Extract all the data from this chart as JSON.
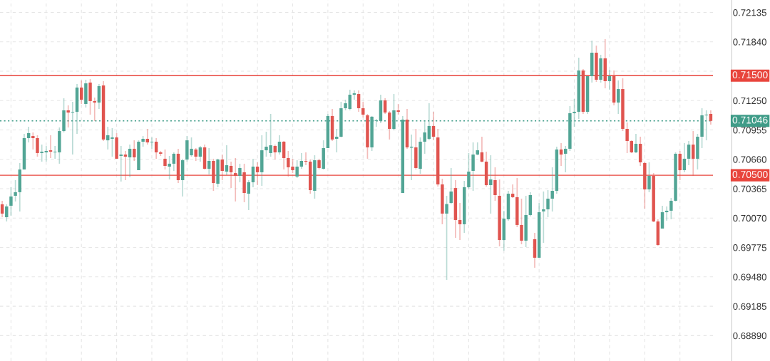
{
  "chart_data": {
    "type": "candlestick",
    "categories": [
      null,
      null,
      null,
      null,
      null,
      null,
      null,
      null,
      null,
      null,
      null,
      null,
      null,
      null,
      null,
      null,
      null,
      null,
      null,
      null,
      null,
      null,
      null,
      null,
      null,
      null,
      null,
      null,
      null,
      null,
      null,
      null,
      null,
      null,
      null,
      null,
      null,
      null,
      null,
      null,
      null,
      null,
      null,
      null,
      null,
      null,
      null,
      null,
      null,
      null,
      null,
      null,
      null,
      null,
      null,
      null,
      null,
      null,
      null,
      null,
      null,
      null,
      null,
      null,
      null,
      null,
      null,
      null,
      null,
      null,
      null,
      null,
      null,
      null,
      null,
      null,
      null,
      null,
      null,
      null,
      null,
      null,
      null,
      null,
      null,
      null,
      null,
      null,
      null,
      null,
      null,
      null,
      null,
      null,
      null,
      null,
      null,
      null,
      null,
      null,
      null,
      null,
      null,
      null,
      null,
      null,
      null,
      null,
      null,
      null,
      null,
      null,
      null,
      null,
      null,
      null,
      null,
      null,
      null,
      null,
      null,
      null,
      null,
      null,
      null,
      null,
      null,
      null,
      null,
      null,
      null,
      null,
      null,
      null,
      null,
      null,
      null,
      null,
      null,
      null,
      null,
      null,
      null,
      null,
      null,
      null,
      null,
      null,
      null,
      null,
      null,
      null,
      null,
      null,
      null,
      null,
      null,
      null,
      null,
      null,
      null,
      null
    ],
    "ohlc": [
      [
        0.70208,
        0.70244,
        0.70079,
        0.70115
      ],
      [
        0.70079,
        0.70208,
        0.70036,
        0.70187
      ],
      [
        0.70194,
        0.7038,
        0.70094,
        0.70287
      ],
      [
        0.70294,
        0.70451,
        0.70237,
        0.7033
      ],
      [
        0.7033,
        0.70623,
        0.70136,
        0.70558
      ],
      [
        0.70558,
        0.70916,
        0.70558,
        0.70873
      ],
      [
        0.70873,
        0.70987,
        0.7083,
        0.70923
      ],
      [
        0.70894,
        0.7093,
        0.70759,
        0.70873
      ],
      [
        0.70873,
        0.70902,
        0.70687,
        0.70723
      ],
      [
        0.70723,
        0.70808,
        0.70637,
        0.70737
      ],
      [
        0.7073,
        0.70794,
        0.70637,
        0.70744
      ],
      [
        0.70751,
        0.70902,
        0.70673,
        0.70737
      ],
      [
        0.7073,
        0.70794,
        0.70666,
        0.70737
      ],
      [
        0.7073,
        0.7098,
        0.70616,
        0.70944
      ],
      [
        0.70944,
        0.71273,
        0.7093,
        0.71152
      ],
      [
        0.71152,
        0.71202,
        0.7098,
        0.7113
      ],
      [
        0.7113,
        0.71238,
        0.70708,
        0.71137
      ],
      [
        0.71137,
        0.71416,
        0.70916,
        0.71381
      ],
      [
        0.71381,
        0.71452,
        0.71216,
        0.71259
      ],
      [
        0.71216,
        0.71459,
        0.7118,
        0.71423
      ],
      [
        0.71431,
        0.71466,
        0.71109,
        0.71245
      ],
      [
        0.71245,
        0.7128,
        0.71045,
        0.7123
      ],
      [
        0.7123,
        0.71416,
        0.71166,
        0.71395
      ],
      [
        0.71402,
        0.71445,
        0.70844,
        0.70859
      ],
      [
        0.70851,
        0.70987,
        0.70759,
        0.70902
      ],
      [
        0.70866,
        0.70973,
        0.70687,
        0.7088
      ],
      [
        0.7088,
        0.70923,
        0.70666,
        0.70666
      ],
      [
        0.70694,
        0.70794,
        0.70437,
        0.70708
      ],
      [
        0.70708,
        0.70744,
        0.70451,
        0.70687
      ],
      [
        0.7068,
        0.70808,
        0.7048,
        0.70766
      ],
      [
        0.70766,
        0.70851,
        0.70644,
        0.7068
      ],
      [
        0.70551,
        0.70851,
        0.70551,
        0.70837
      ],
      [
        0.70837,
        0.70894,
        0.70787,
        0.70866
      ],
      [
        0.70866,
        0.70966,
        0.70808,
        0.7083
      ],
      [
        0.7083,
        0.7088,
        0.70766,
        0.70837
      ],
      [
        0.70837,
        0.70873,
        0.70666,
        0.7073
      ],
      [
        0.7073,
        0.70744,
        0.70694,
        0.70716
      ],
      [
        0.70666,
        0.70759,
        0.70558,
        0.70594
      ],
      [
        0.70587,
        0.70694,
        0.70458,
        0.70616
      ],
      [
        0.70616,
        0.7073,
        0.70544,
        0.70716
      ],
      [
        0.70716,
        0.70766,
        0.70422,
        0.70451
      ],
      [
        0.70451,
        0.70666,
        0.70287,
        0.70651
      ],
      [
        0.70658,
        0.70894,
        0.70637,
        0.70851
      ],
      [
        0.70701,
        0.7088,
        0.70687,
        0.70766
      ],
      [
        0.70759,
        0.70773,
        0.70644,
        0.70687
      ],
      [
        0.70687,
        0.70794,
        0.70637,
        0.7078
      ],
      [
        0.7078,
        0.70808,
        0.70558,
        0.70565
      ],
      [
        0.70565,
        0.70773,
        0.70508,
        0.70644
      ],
      [
        0.70644,
        0.70666,
        0.70344,
        0.70422
      ],
      [
        0.70415,
        0.70666,
        0.7038,
        0.70658
      ],
      [
        0.70658,
        0.70708,
        0.70451,
        0.70544
      ],
      [
        0.70537,
        0.70801,
        0.70501,
        0.70601
      ],
      [
        0.70594,
        0.70637,
        0.70372,
        0.7053
      ],
      [
        0.70522,
        0.70673,
        0.70237,
        0.70494
      ],
      [
        0.70494,
        0.70616,
        0.7043,
        0.70573
      ],
      [
        0.7053,
        0.70616,
        0.70229,
        0.70322
      ],
      [
        0.70315,
        0.70451,
        0.70151,
        0.7043
      ],
      [
        0.7043,
        0.70666,
        0.7038,
        0.70587
      ],
      [
        0.70587,
        0.7063,
        0.70401,
        0.7053
      ],
      [
        0.7053,
        0.70902,
        0.70394,
        0.70751
      ],
      [
        0.70751,
        0.70937,
        0.70687,
        0.70787
      ],
      [
        0.70723,
        0.71116,
        0.70687,
        0.70801
      ],
      [
        0.70794,
        0.70808,
        0.70658,
        0.7073
      ],
      [
        0.7073,
        0.70902,
        0.70708,
        0.70837
      ],
      [
        0.70837,
        0.70844,
        0.70558,
        0.70673
      ],
      [
        0.70673,
        0.70744,
        0.70487,
        0.7058
      ],
      [
        0.70587,
        0.70666,
        0.70522,
        0.70551
      ],
      [
        0.70487,
        0.70651,
        0.70472,
        0.70587
      ],
      [
        0.70587,
        0.70723,
        0.70565,
        0.70644
      ],
      [
        0.70644,
        0.7073,
        0.70601,
        0.70637
      ],
      [
        0.70637,
        0.70658,
        0.70315,
        0.70351
      ],
      [
        0.70344,
        0.70701,
        0.70265,
        0.70651
      ],
      [
        0.70651,
        0.70666,
        0.70558,
        0.70573
      ],
      [
        0.70565,
        0.70851,
        0.70558,
        0.70773
      ],
      [
        0.70773,
        0.71116,
        0.70773,
        0.71095
      ],
      [
        0.71095,
        0.71166,
        0.70844,
        0.70859
      ],
      [
        0.70866,
        0.70966,
        0.7073,
        0.70887
      ],
      [
        0.70887,
        0.71238,
        0.7088,
        0.71173
      ],
      [
        0.71173,
        0.71259,
        0.71152,
        0.71223
      ],
      [
        0.71166,
        0.71359,
        0.71152,
        0.71309
      ],
      [
        0.71309,
        0.71352,
        0.71259,
        0.71323
      ],
      [
        0.71316,
        0.71352,
        0.71137,
        0.71173
      ],
      [
        0.71173,
        0.71238,
        0.7108,
        0.71109
      ],
      [
        0.71102,
        0.71116,
        0.70666,
        0.7078
      ],
      [
        0.7078,
        0.71095,
        0.70744,
        0.71088
      ],
      [
        0.71045,
        0.71066,
        0.70987,
        0.71052
      ],
      [
        0.71045,
        0.71309,
        0.71023,
        0.71252
      ],
      [
        0.71252,
        0.71273,
        0.71116,
        0.7113
      ],
      [
        0.7113,
        0.71145,
        0.70859,
        0.70966
      ],
      [
        0.70966,
        0.71316,
        0.70952,
        0.71152
      ],
      [
        0.71152,
        0.71216,
        0.71109,
        0.71137
      ],
      [
        0.70322,
        0.71095,
        0.70322,
        0.71059
      ],
      [
        0.71059,
        0.71166,
        0.70766,
        0.7078
      ],
      [
        0.70777,
        0.70909,
        0.70451,
        0.70787
      ],
      [
        0.7078,
        0.70966,
        0.70558,
        0.70573
      ],
      [
        0.70565,
        0.7088,
        0.70515,
        0.70837
      ],
      [
        0.70837,
        0.71052,
        0.70716,
        0.7093
      ],
      [
        0.70866,
        0.71223,
        0.70851,
        0.70995
      ],
      [
        0.70995,
        0.71137,
        0.70851,
        0.70887
      ],
      [
        0.7088,
        0.70966,
        0.70387,
        0.70408
      ],
      [
        0.70408,
        0.70465,
        0.70008,
        0.70115
      ],
      [
        0.70115,
        0.70294,
        0.6945,
        0.70211
      ],
      [
        0.70222,
        0.70573,
        0.70211,
        0.70337
      ],
      [
        0.70372,
        0.70451,
        0.69872,
        0.70051
      ],
      [
        0.70051,
        0.70222,
        0.6985,
        0.70008
      ],
      [
        0.70008,
        0.70444,
        0.69922,
        0.7038
      ],
      [
        0.7038,
        0.70723,
        0.70365,
        0.70537
      ],
      [
        0.70544,
        0.7083,
        0.70344,
        0.70708
      ],
      [
        0.70708,
        0.7083,
        0.70701,
        0.70751
      ],
      [
        0.7073,
        0.70887,
        0.7063,
        0.70637
      ],
      [
        0.70637,
        0.70737,
        0.70387,
        0.70401
      ],
      [
        0.70401,
        0.70701,
        0.70115,
        0.70458
      ],
      [
        0.70451,
        0.7058,
        0.70244,
        0.70301
      ],
      [
        0.70294,
        0.70458,
        0.69786,
        0.6985
      ],
      [
        0.6985,
        0.70144,
        0.69743,
        0.70065
      ],
      [
        0.70058,
        0.70344,
        0.70044,
        0.70315
      ],
      [
        0.70315,
        0.70408,
        0.70272,
        0.7028
      ],
      [
        0.7028,
        0.70472,
        0.69979,
        0.70001
      ],
      [
        0.70001,
        0.70265,
        0.69807,
        0.69843
      ],
      [
        0.69843,
        0.70294,
        0.69779,
        0.70101
      ],
      [
        0.70101,
        0.7033,
        0.70087,
        0.70301
      ],
      [
        0.69858,
        0.69922,
        0.69572,
        0.69672
      ],
      [
        0.69672,
        0.70222,
        0.69672,
        0.70129
      ],
      [
        0.70137,
        0.70337,
        0.69822,
        0.70158
      ],
      [
        0.70158,
        0.70351,
        0.70079,
        0.70265
      ],
      [
        0.70265,
        0.7058,
        0.70136,
        0.70344
      ],
      [
        0.70344,
        0.70787,
        0.70315,
        0.70759
      ],
      [
        0.70759,
        0.70823,
        0.70594,
        0.70708
      ],
      [
        0.70716,
        0.70794,
        0.7053,
        0.70766
      ],
      [
        0.70766,
        0.71195,
        0.70744,
        0.71123
      ],
      [
        0.71123,
        0.71266,
        0.70987,
        0.71137
      ],
      [
        0.71137,
        0.71681,
        0.71066,
        0.71552
      ],
      [
        0.71552,
        0.71566,
        0.71116,
        0.71137
      ],
      [
        0.71137,
        0.71495,
        0.71116,
        0.71495
      ],
      [
        0.71495,
        0.71852,
        0.71431,
        0.71731
      ],
      [
        0.71731,
        0.71802,
        0.71438,
        0.71459
      ],
      [
        0.71459,
        0.7171,
        0.71431,
        0.71674
      ],
      [
        0.71674,
        0.71867,
        0.71373,
        0.71445
      ],
      [
        0.71445,
        0.71559,
        0.71359,
        0.71495
      ],
      [
        0.71495,
        0.71552,
        0.71202,
        0.7123
      ],
      [
        0.7123,
        0.71452,
        0.71116,
        0.71366
      ],
      [
        0.71366,
        0.71474,
        0.70944,
        0.70966
      ],
      [
        0.70966,
        0.7103,
        0.70723,
        0.70844
      ],
      [
        0.70844,
        0.70851,
        0.70723,
        0.7073
      ],
      [
        0.7073,
        0.70916,
        0.70723,
        0.70816
      ],
      [
        0.70816,
        0.70887,
        0.70594,
        0.7063
      ],
      [
        0.70623,
        0.70637,
        0.70165,
        0.70358
      ],
      [
        0.70358,
        0.7063,
        0.7033,
        0.70494
      ],
      [
        0.70494,
        0.70522,
        0.70029,
        0.70036
      ],
      [
        0.70036,
        0.70058,
        0.69793,
        0.698
      ],
      [
        0.69965,
        0.70194,
        0.69965,
        0.70129
      ],
      [
        0.70129,
        0.70187,
        0.70044,
        0.70144
      ],
      [
        0.70144,
        0.70272,
        0.70058,
        0.70244
      ],
      [
        0.70244,
        0.7073,
        0.70237,
        0.70716
      ],
      [
        0.70716,
        0.70744,
        0.70451,
        0.70551
      ],
      [
        0.70551,
        0.70823,
        0.7053,
        0.70666
      ],
      [
        0.70666,
        0.70844,
        0.70601,
        0.70808
      ],
      [
        0.70808,
        0.70944,
        0.70494,
        0.70666
      ],
      [
        0.70666,
        0.70916,
        0.70558,
        0.70887
      ],
      [
        0.70887,
        0.71173,
        0.70773,
        0.71102
      ],
      [
        0.71102,
        0.71152,
        0.70851,
        0.71109
      ],
      [
        0.71116,
        0.71152,
        0.71009,
        0.71046
      ]
    ],
    "colors": [
      "#e0544f",
      "#52a595",
      "#52a595",
      "#52a595",
      "#52a595",
      "#52a595",
      "#52a595",
      "#e0544f",
      "#e0544f",
      "#52a595",
      "#52a595",
      "#e0544f",
      "#52a595",
      "#52a595",
      "#52a595",
      "#e0544f",
      "#52a595",
      "#52a595",
      "#e0544f",
      "#52a595",
      "#e0544f",
      "#e0544f",
      "#52a595",
      "#e0544f",
      "#52a595",
      "#52a595",
      "#e0544f",
      "#52a595",
      "#e0544f",
      "#52a595",
      "#e0544f",
      "#52a595",
      "#52a595",
      "#e0544f",
      "#52a595",
      "#e0544f",
      "#e0544f",
      "#e0544f",
      "#52a595",
      "#52a595",
      "#e0544f",
      "#52a595",
      "#52a595",
      "#52a595",
      "#e0544f",
      "#52a595",
      "#e0544f",
      "#52a595",
      "#e0544f",
      "#52a595",
      "#e0544f",
      "#52a595",
      "#e0544f",
      "#e0544f",
      "#52a595",
      "#e0544f",
      "#52a595",
      "#52a595",
      "#e0544f",
      "#52a595",
      "#52a595",
      "#52a595",
      "#e0544f",
      "#52a595",
      "#e0544f",
      "#e0544f",
      "#e0544f",
      "#52a595",
      "#52a595",
      "#e0544f",
      "#e0544f",
      "#52a595",
      "#e0544f",
      "#52a595",
      "#52a595",
      "#e0544f",
      "#52a595",
      "#52a595",
      "#52a595",
      "#52a595",
      "#52a595",
      "#e0544f",
      "#e0544f",
      "#e0544f",
      "#52a595",
      "#52a595",
      "#52a595",
      "#e0544f",
      "#e0544f",
      "#52a595",
      "#e0544f",
      "#52a595",
      "#e0544f",
      "#52a595",
      "#e0544f",
      "#52a595",
      "#52a595",
      "#52a595",
      "#e0544f",
      "#e0544f",
      "#e0544f",
      "#52a595",
      "#52a595",
      "#e0544f",
      "#e0544f",
      "#52a595",
      "#52a595",
      "#52a595",
      "#52a595",
      "#e0544f",
      "#e0544f",
      "#52a595",
      "#e0544f",
      "#e0544f",
      "#52a595",
      "#52a595",
      "#e0544f",
      "#e0544f",
      "#e0544f",
      "#52a595",
      "#52a595",
      "#e0544f",
      "#52a595",
      "#52a595",
      "#52a595",
      "#52a595",
      "#52a595",
      "#e0544f",
      "#52a595",
      "#52a595",
      "#52a595",
      "#52a595",
      "#e0544f",
      "#52a595",
      "#52a595",
      "#e0544f",
      "#52a595",
      "#e0544f",
      "#52a595",
      "#e0544f",
      "#52a595",
      "#e0544f",
      "#e0544f",
      "#e0544f",
      "#52a595",
      "#e0544f",
      "#e0544f",
      "#52a595",
      "#e0544f",
      "#e0544f",
      "#52a595",
      "#52a595",
      "#52a595",
      "#52a595",
      "#e0544f",
      "#52a595",
      "#52a595",
      "#e0544f",
      "#52a595",
      "#52a595",
      "#52a595",
      "#e0544f"
    ],
    "ylim": [
      0.68635,
      0.7226
    ],
    "yticks": [
      {
        "value": 0.6889,
        "label": "0.68890"
      },
      0.69185,
      {
        "value": 0.6948,
        "label": "0.69480"
      },
      0.69775,
      {
        "value": 0.7007,
        "label": "0.70070"
      },
      0.70365,
      {
        "value": 0.7066,
        "label": "0.70660"
      },
      0.70955,
      {
        "value": 0.7125,
        "label": "0.71250"
      },
      {
        "value": 0.71545,
        "label": null
      },
      {
        "value": 0.7184,
        "label": "0.71840"
      },
      0.72135
    ],
    "ref_lines": [
      {
        "axis": "y",
        "value": 0.715,
        "label": "0.71500",
        "color": "#e8453c",
        "line_style": "solid"
      },
      {
        "axis": "y",
        "value": 0.705,
        "label": "0.70500",
        "color": "#e8453c",
        "line_style": "solid"
      },
      {
        "axis": "y",
        "value": 0.71046,
        "label": "0.71046",
        "color": "#3f9c88",
        "line_style": "dotted"
      }
    ],
    "grid": true,
    "tick_labels": "y"
  }
}
